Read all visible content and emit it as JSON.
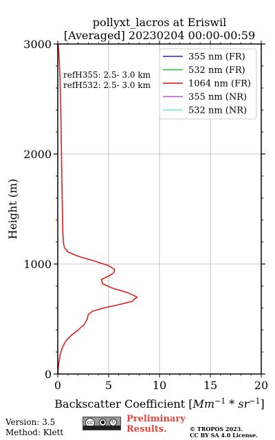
{
  "chart_data": {
    "type": "line",
    "title": [
      "pollyxt_lacros at Eriswil",
      "[Averaged] 20230204 00:00-00:59"
    ],
    "xlabel_prefix": "Backscatter Coefficient [",
    "xlabel_math": "Mm",
    "xlabel_sup": "−1",
    "xlabel_mid": " * ",
    "xlabel_math2": "sr",
    "xlabel_sup2": "−1",
    "xlabel_suffix": "]",
    "ylabel": "Height (m)",
    "xlim": [
      0,
      20
    ],
    "ylim": [
      0,
      3000
    ],
    "xticks": [
      "0",
      "5",
      "10",
      "15",
      "20"
    ],
    "yticks": [
      "0",
      "1000",
      "2000",
      "3000"
    ],
    "grid": true,
    "legend_position": "top-right",
    "annotations": [
      "refH355:  2.5- 3.0 km",
      "refH532:  2.5- 3.0 km"
    ],
    "series": [
      {
        "name": "355 nm (FR)",
        "color": "#2020e0",
        "points": []
      },
      {
        "name": "532 nm (FR)",
        "color": "#20c020",
        "points": []
      },
      {
        "name": "1064 nm (FR)",
        "color": "#e01010",
        "points": [
          [
            0.0,
            0
          ],
          [
            0.05,
            50
          ],
          [
            0.1,
            100
          ],
          [
            0.2,
            150
          ],
          [
            0.3,
            200
          ],
          [
            0.5,
            250
          ],
          [
            0.8,
            300
          ],
          [
            1.3,
            350
          ],
          [
            2.0,
            400
          ],
          [
            2.6,
            450
          ],
          [
            2.9,
            500
          ],
          [
            3.0,
            540
          ],
          [
            3.4,
            570
          ],
          [
            4.5,
            600
          ],
          [
            6.0,
            630
          ],
          [
            7.3,
            660
          ],
          [
            7.8,
            700
          ],
          [
            7.0,
            735
          ],
          [
            5.4,
            780
          ],
          [
            4.4,
            820
          ],
          [
            4.3,
            860
          ],
          [
            5.0,
            890
          ],
          [
            5.5,
            920
          ],
          [
            5.6,
            950
          ],
          [
            5.0,
            985
          ],
          [
            3.5,
            1030
          ],
          [
            2.0,
            1070
          ],
          [
            1.0,
            1110
          ],
          [
            0.65,
            1150
          ],
          [
            0.55,
            1200
          ],
          [
            0.5,
            1300
          ],
          [
            0.45,
            1500
          ],
          [
            0.4,
            1800
          ],
          [
            0.35,
            2100
          ],
          [
            0.3,
            2400
          ],
          [
            0.22,
            2700
          ],
          [
            0.12,
            2900
          ],
          [
            0.05,
            3000
          ]
        ]
      },
      {
        "name": "355 nm (NR)",
        "color": "#b050e0",
        "points": []
      },
      {
        "name": "532 nm (NR)",
        "color": "#60f0d0",
        "points": []
      }
    ]
  },
  "footer": {
    "version": "Version: 3.5",
    "method": "Method: Klett",
    "preliminary_line1": "Preliminary",
    "preliminary_line2": "Results.",
    "copyright_line1": "© TROPOS 2023.",
    "copyright_line2": "CC BY SA 4.0 License.",
    "license_badge_text": "BY  SA"
  }
}
